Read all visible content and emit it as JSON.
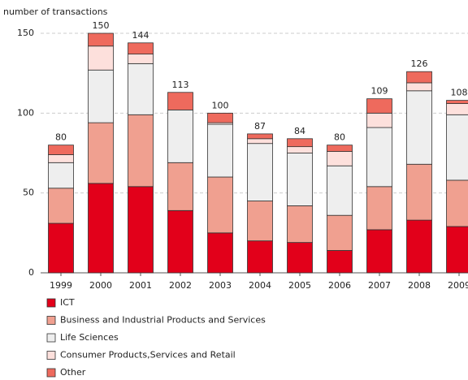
{
  "chart_data": {
    "type": "stacked-bar",
    "y_axis_label": "number of transactions",
    "categories": [
      "1999",
      "2000",
      "2001",
      "2002",
      "2003",
      "2004",
      "2005",
      "2006",
      "2007",
      "2008",
      "2009"
    ],
    "series": [
      {
        "name": "ICT",
        "color": "#e2001a",
        "values": [
          31,
          56,
          54,
          39,
          25,
          20,
          19,
          14,
          27,
          33,
          29
        ]
      },
      {
        "name": "Business and Industrial Products and Services",
        "color": "#f0a090",
        "values": [
          22,
          38,
          45,
          30,
          35,
          25,
          23,
          22,
          27,
          35,
          29
        ]
      },
      {
        "name": "Life Sciences",
        "color": "#eeeeee",
        "values": [
          16,
          33,
          32,
          33,
          33,
          36,
          33,
          31,
          37,
          46,
          41
        ]
      },
      {
        "name": "Consumer Products,Services and Retail",
        "color": "#fde0dc",
        "values": [
          5,
          15,
          6,
          0,
          1,
          3,
          4,
          9,
          9,
          5,
          7
        ]
      },
      {
        "name": "Other",
        "color": "#ee6a5d",
        "values": [
          6,
          8,
          7,
          11,
          6,
          3,
          5,
          4,
          9,
          7,
          2
        ]
      }
    ],
    "totals": [
      80,
      150,
      144,
      113,
      100,
      87,
      84,
      80,
      109,
      126,
      108
    ],
    "ylim": [
      0,
      150
    ],
    "yticks": [
      0,
      50,
      100,
      150
    ],
    "grid": true
  }
}
